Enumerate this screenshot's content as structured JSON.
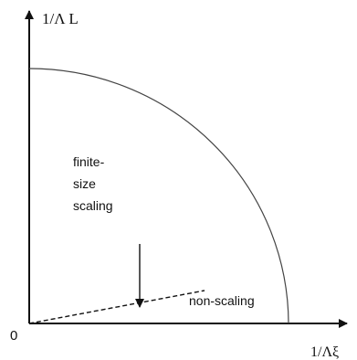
{
  "axes": {
    "y_label": "1/Λ L",
    "x_label": "1/Λξ",
    "origin_label": "0"
  },
  "regions": {
    "inside_label_lines": [
      "finite-",
      "size",
      "scaling"
    ],
    "outside_label": "non-scaling"
  },
  "colors": {
    "axis": "#111111",
    "boundary_curve": "#444444",
    "dashed_line": "#111111"
  }
}
